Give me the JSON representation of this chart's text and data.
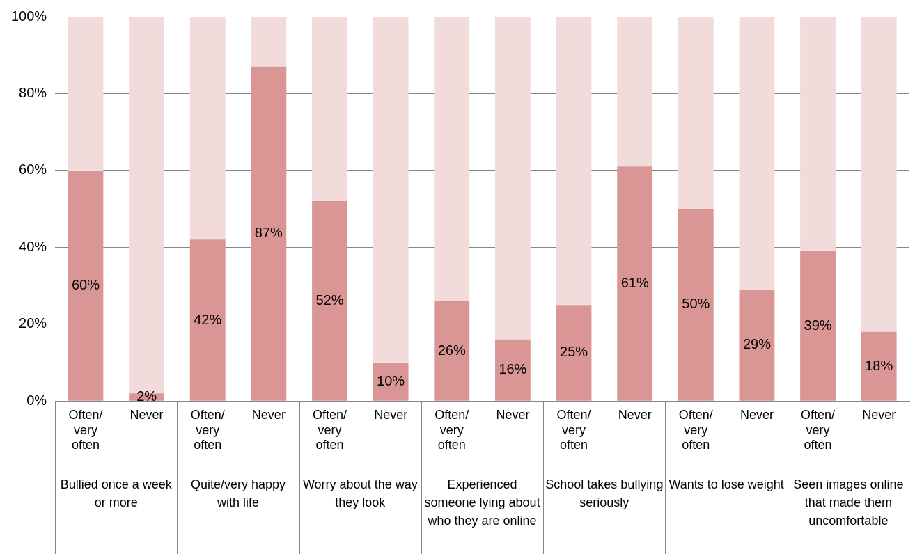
{
  "chart_data": {
    "type": "bar",
    "stacked": true,
    "grid": "y",
    "legend": false,
    "categories": [
      "Often/ very often",
      "Never",
      "Often/ very often",
      "Never",
      "Often/ very often",
      "Never",
      "Often/ very often",
      "Never",
      "Often/ very often",
      "Never",
      "Often/ very often",
      "Never",
      "Often/ very often",
      "Never"
    ],
    "series": [
      {
        "color": "#d99694",
        "values": [
          60,
          2,
          42,
          87,
          52,
          10,
          26,
          16,
          25,
          61,
          50,
          29,
          39,
          18
        ],
        "value_labels": [
          "60%",
          "2%",
          "42%",
          "87%",
          "52%",
          "10%",
          "26%",
          "16%",
          "25%",
          "61%",
          "50%",
          "29%",
          "39%",
          "18%"
        ]
      },
      {
        "color": "#f2dcdb",
        "values": [
          40,
          98,
          58,
          13,
          48,
          90,
          74,
          84,
          75,
          39,
          50,
          71,
          61,
          82
        ]
      }
    ],
    "ylim": [
      0,
      100
    ],
    "yticks": [
      {
        "value": 0,
        "label": "0%"
      },
      {
        "value": 20,
        "label": "20%"
      },
      {
        "value": 40,
        "label": "40%"
      },
      {
        "value": 60,
        "label": "60%"
      },
      {
        "value": 80,
        "label": "80%"
      },
      {
        "value": 100,
        "label": "100%"
      }
    ],
    "annotations": [
      "Bullied once a week or more",
      "Quite/very happy with life",
      "Worry about the way they look",
      "Experienced someone lying about who they are online",
      "School takes bullying seriously",
      "Wants to lose weight",
      "Seen images online that made them uncomfortable"
    ]
  }
}
